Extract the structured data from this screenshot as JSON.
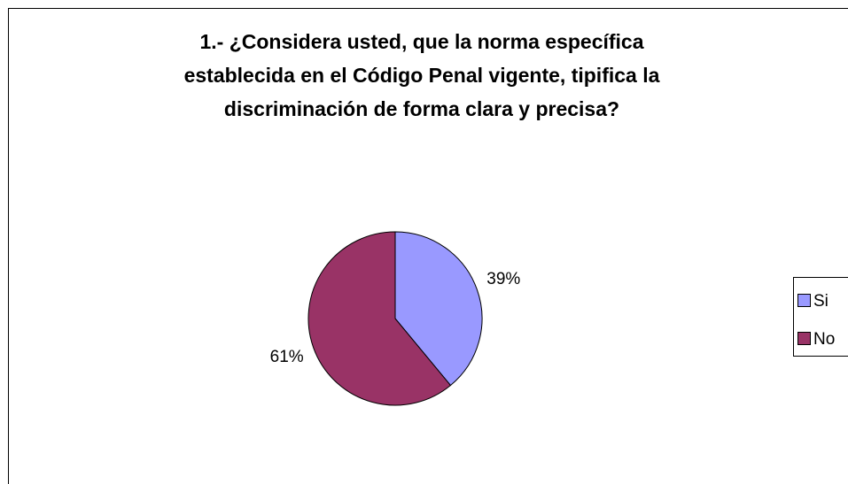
{
  "chart_data": {
    "type": "pie",
    "title": [
      "1.- ¿Considera usted, que la norma específica",
      "establecida en el Código Penal vigente, tipifica la",
      "discriminación de forma clara y precisa?"
    ],
    "categories": [
      "Si",
      "No"
    ],
    "values": [
      39,
      61
    ],
    "value_labels": [
      "39%",
      "61%"
    ],
    "colors": [
      "#9999ff",
      "#993366"
    ],
    "legend": "right"
  }
}
